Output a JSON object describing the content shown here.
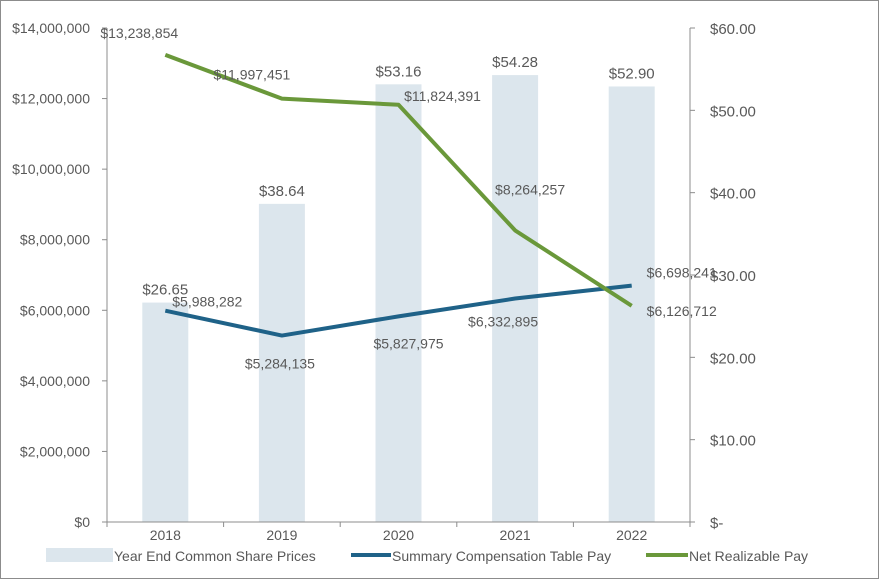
{
  "chart_data": {
    "type": "bar+line",
    "categories": [
      "2018",
      "2019",
      "2020",
      "2021",
      "2022"
    ],
    "bar_series": {
      "name": "Year End Common Share Prices",
      "axis": "right",
      "values": [
        26.65,
        38.64,
        53.16,
        54.28,
        52.9
      ],
      "labels": [
        "$26.65",
        "$38.64",
        "$53.16",
        "$54.28",
        "$52.90"
      ],
      "color": "#dce6ed"
    },
    "line_series": [
      {
        "name": "Summary Compensation Table Pay",
        "axis": "left",
        "values": [
          5988282,
          5284135,
          5827975,
          6332895,
          6698241
        ],
        "labels": [
          "$5,988,282",
          "$5,284,135",
          "$5,827,975",
          "$6,332,895",
          "$6,698,241"
        ],
        "color": "#1f6288"
      },
      {
        "name": "Net Realizable Pay",
        "axis": "left",
        "values": [
          13238854,
          11997451,
          11824391,
          8264257,
          6126712
        ],
        "labels": [
          "$13,238,854",
          "$11,997,451",
          "$11,824,391",
          "$8,264,257",
          "$6,126,712"
        ],
        "color": "#6a983a"
      }
    ],
    "left_axis": {
      "ylim": [
        0,
        14000000
      ],
      "ticks": [
        "$0",
        "$2,000,000",
        "$4,000,000",
        "$6,000,000",
        "$8,000,000",
        "$10,000,000",
        "$12,000,000",
        "$14,000,000"
      ]
    },
    "right_axis": {
      "ylim": [
        0,
        60
      ],
      "ticks": [
        "$-",
        "$10.00",
        "$20.00",
        "$30.00",
        "$40.00",
        "$50.00",
        "$60.00"
      ]
    },
    "grid": false,
    "legend": "bottom"
  }
}
